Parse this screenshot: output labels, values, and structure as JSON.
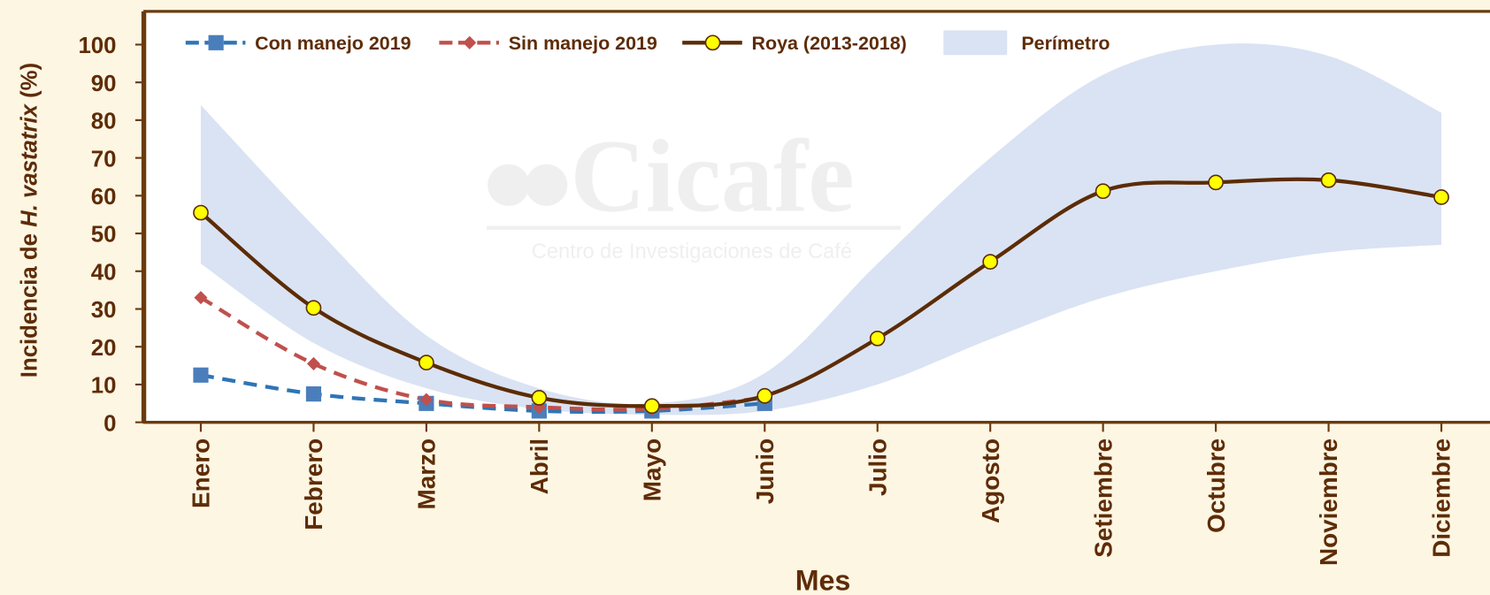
{
  "chart_data": {
    "type": "line",
    "y_label": [
      "Incidencia de ",
      "H. vastatrix",
      " (%)"
    ],
    "x_label": "Mes",
    "categories": [
      "Enero",
      "Febrero",
      "Marzo",
      "Abril",
      "Mayo",
      "Junio",
      "Julio",
      "Agosto",
      "Setiembre",
      "Octubre",
      "Noviembre",
      "Diciembre"
    ],
    "series": [
      {
        "name": "Con manejo 2019",
        "color": "#2e75b6",
        "marker": "square",
        "dash": true,
        "values": [
          12.5,
          7.5,
          5,
          3,
          3,
          5,
          null,
          null,
          null,
          null,
          null,
          null
        ]
      },
      {
        "name": "Sin manejo 2019",
        "color": "#c0504d",
        "marker": "diamond",
        "dash": true,
        "values": [
          33,
          15.5,
          6,
          4,
          3.5,
          6.5,
          null,
          null,
          null,
          null,
          null,
          null
        ]
      },
      {
        "name": "Roya (2013-2018)",
        "color": "#5b2c06",
        "marker": "circle",
        "dash": false,
        "values": [
          55.5,
          30.3,
          15.8,
          6.5,
          4.3,
          7,
          22.2,
          42.5,
          61.2,
          63.5,
          64.1,
          59.6
        ]
      },
      {
        "name": "Perímetro",
        "color": "#dae3f3",
        "marker": "band",
        "values": [
          84,
          52,
          23,
          9,
          5,
          13,
          42,
          70,
          92,
          100,
          97,
          82
        ],
        "lower": [
          42,
          21,
          9,
          3.5,
          2,
          3,
          10,
          22,
          33,
          40,
          45,
          47
        ]
      }
    ],
    "ylim": [
      0,
      100
    ],
    "yticks": [
      0,
      10,
      20,
      30,
      40,
      50,
      60,
      70,
      80,
      90,
      100
    ],
    "legend": "top",
    "watermark": {
      "logo": "Cicafe",
      "tagline": "Centro de Investigaciones de Café"
    }
  }
}
